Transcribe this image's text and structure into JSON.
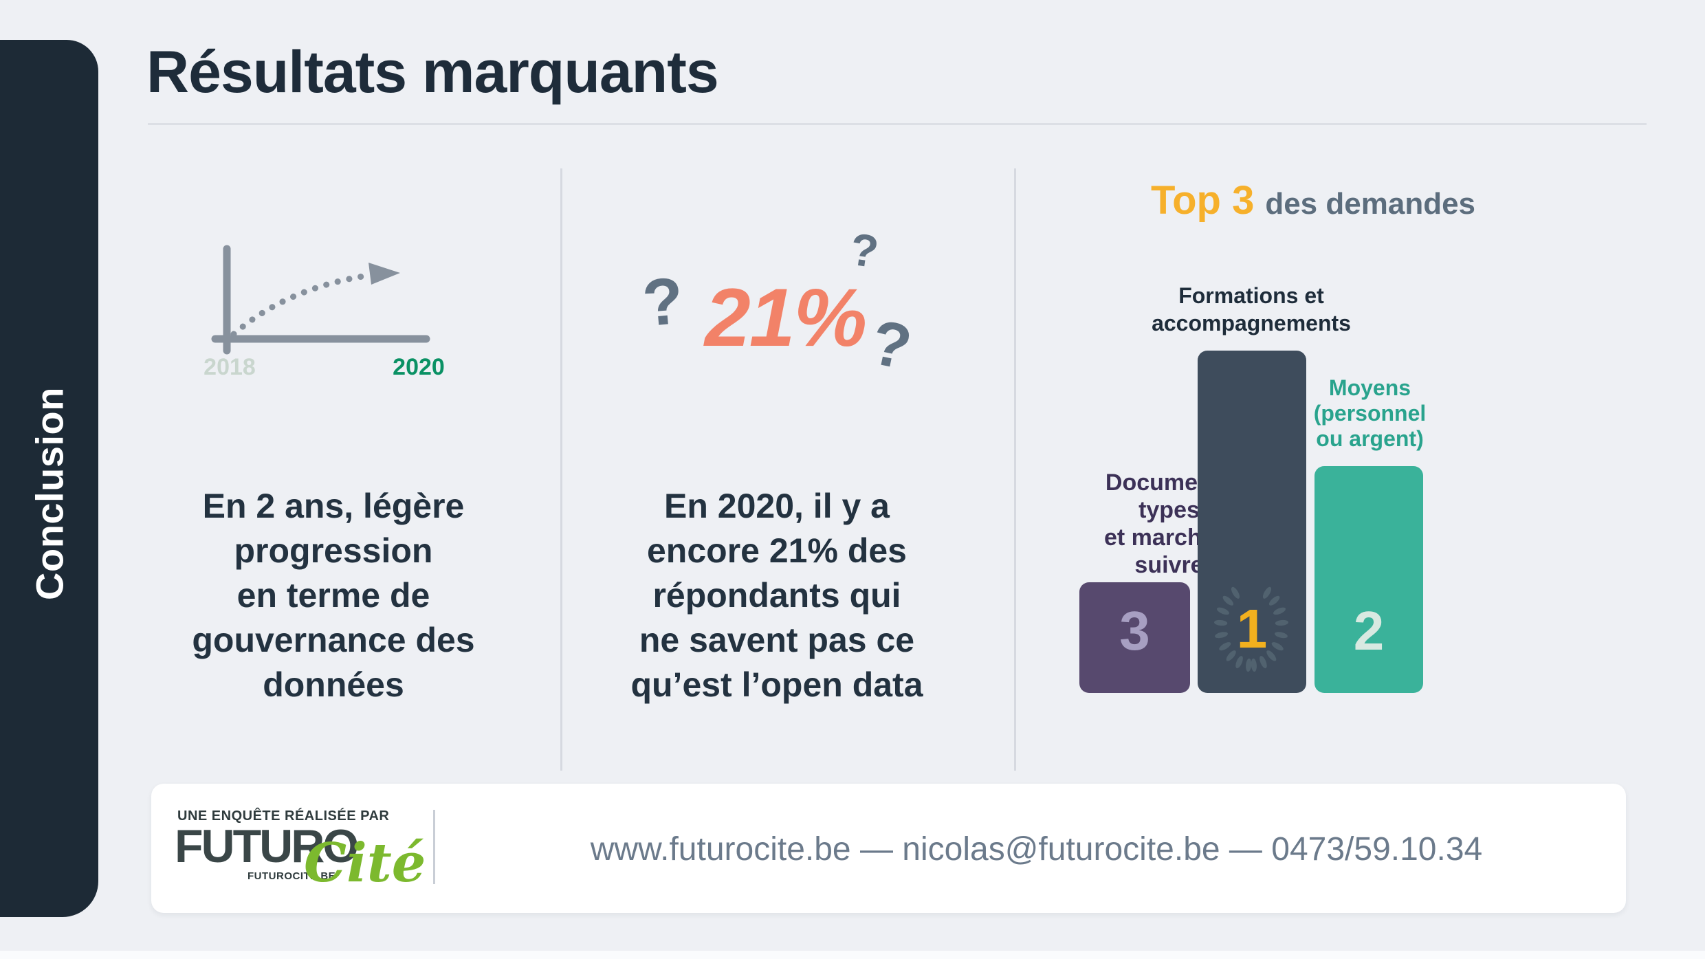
{
  "sidebar": {
    "label": "Conclusion"
  },
  "header": {
    "title": "Résultats marquants"
  },
  "col_progress": {
    "years": {
      "start": "2018",
      "end": "2020"
    },
    "caption_lines": [
      "En 2 ans, légère",
      "progression",
      "en terme de",
      "gouvernance des",
      "données"
    ]
  },
  "col_awareness": {
    "stat": "21%",
    "question_mark": "?",
    "caption_lines": [
      "En 2020, il y a",
      "encore 21% des",
      "répondants qui",
      "ne savent pas ce",
      "qu’est l’open data"
    ]
  },
  "col_top3": {
    "title_highlight": "Top 3",
    "title_rest": "des demandes",
    "podium": [
      {
        "label_lines": [
          "Documents",
          "types",
          "et marche à",
          "suivre"
        ],
        "rank": "3",
        "bar_color": "#57496e",
        "label_color": "#3c3157",
        "rank_color": "#a79fc2"
      },
      {
        "label_lines": [
          "Formations et",
          "accompagnements"
        ],
        "rank": "1",
        "bar_color": "#3e4c5c",
        "label_color": "#1e2c3a",
        "rank_color": "#f2b01e"
      },
      {
        "label_lines": [
          "Moyens",
          "(personnel",
          "ou argent)"
        ],
        "rank": "2",
        "bar_color": "#3ab29a",
        "label_color": "#29a38d",
        "rank_color": "#d8e9e1"
      }
    ]
  },
  "footer": {
    "eyebrow": "UNE ENQUÊTE RÉALISÉE PAR",
    "brand_dark": "FUTURO",
    "brand_green": "Cité",
    "brand_sub": "FUTUROCITE.BE",
    "contact": "www.futurocite.be — nicolas@futurocite.be — 0473/59.10.34"
  },
  "colors": {
    "background": "#eef0f4",
    "sidebar_bg": "#1d2a36",
    "heading_dark": "#1e2c3a",
    "body_text": "#233240",
    "axis_gray": "#87919d",
    "year_start_muted": "#c9d6ce",
    "year_end_green": "#0a9164",
    "stat_coral": "#f28268",
    "question_gray": "#607182",
    "top3_yellow": "#f6b02b",
    "top3_gray": "#5c6d7d",
    "laurel_gray": "#51626f",
    "logo_green": "#7cb92e",
    "logo_dark": "#3a4647",
    "contact_gray": "#6b7a8b"
  },
  "chart_data": [
    {
      "type": "line",
      "title": "",
      "x": [
        "2018",
        "2020"
      ],
      "series": [
        {
          "name": "gouvernance des données",
          "trend": "rising dotted arrow"
        }
      ],
      "grid": false,
      "note": "stylized pictogram: dotted curve rising from origin toward an arrowhead"
    },
    {
      "type": "bar",
      "title": "Top 3 des demandes",
      "categories": [
        "Documents types et marche à suivre",
        "Formations et accompagnements",
        "Moyens (personnel ou argent)"
      ],
      "ranks": [
        3,
        1,
        2
      ],
      "values": [
        1,
        3,
        2
      ],
      "ylabel": "",
      "xlabel": "",
      "grid": false,
      "legend_position": "none",
      "note": "podium pictogram; values are relative bar heights (rank 1 tallest)"
    }
  ]
}
